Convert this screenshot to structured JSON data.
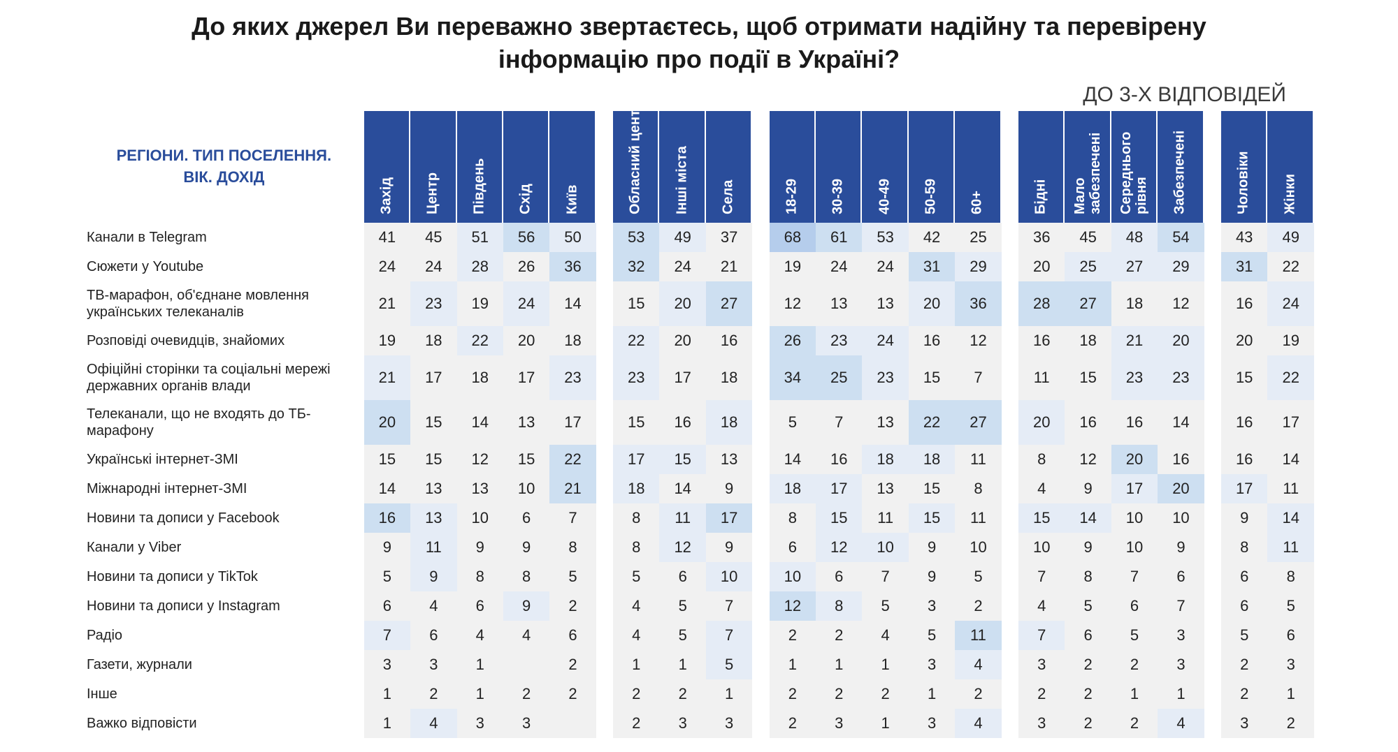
{
  "title_line1": "До яких джерел Ви переважно звертаєтесь, щоб отримати надійну та перевірену",
  "title_line2": "інформацію про події в Україні?",
  "subtitle": "ДО 3-Х ВІДПОВІДЕЙ",
  "corner_line1": "РЕГІОНИ. ТИП ПОСЕЛЕННЯ.",
  "corner_line2": "ВІК. ДОХІД",
  "shade_colors": {
    "c0": "#f1f1f1",
    "c1": "#e5ecf6",
    "c2": "#cddff1",
    "c3": "#b5cdec"
  },
  "header_bg": "#2a4d9b",
  "header_fg": "#ffffff",
  "column_groups": [
    {
      "name": "regions",
      "cols": [
        "Захід",
        "Центр",
        "Південь",
        "Схід",
        "Київ"
      ]
    },
    {
      "name": "settlement",
      "cols": [
        "Обласний центр",
        "Інші міста",
        "Села"
      ]
    },
    {
      "name": "age",
      "cols": [
        "18-29",
        "30-39",
        "40-49",
        "50-59",
        "60+"
      ]
    },
    {
      "name": "income",
      "cols": [
        "Бідні",
        "Мало забезпечені",
        "Середнього рівня",
        "Забезпечені"
      ]
    },
    {
      "name": "sex",
      "cols": [
        "Чоловіки",
        "Жінки"
      ]
    }
  ],
  "rows": [
    {
      "label": "Канали в Telegram",
      "tall": false,
      "vals": [
        41,
        45,
        51,
        56,
        50,
        53,
        49,
        37,
        68,
        61,
        53,
        42,
        25,
        36,
        45,
        48,
        54,
        43,
        49
      ],
      "shades": [
        "c0",
        "c0",
        "c1",
        "c2",
        "c1",
        "c2",
        "c1",
        "c0",
        "c3",
        "c2",
        "c1",
        "c0",
        "c0",
        "c0",
        "c0",
        "c1",
        "c2",
        "c0",
        "c1"
      ]
    },
    {
      "label": "Сюжети у Youtube",
      "tall": false,
      "vals": [
        24,
        24,
        28,
        26,
        36,
        32,
        24,
        21,
        19,
        24,
        24,
        31,
        29,
        20,
        25,
        27,
        29,
        31,
        22
      ],
      "shades": [
        "c0",
        "c0",
        "c1",
        "c0",
        "c2",
        "c2",
        "c0",
        "c0",
        "c0",
        "c0",
        "c0",
        "c2",
        "c1",
        "c0",
        "c1",
        "c1",
        "c1",
        "c2",
        "c0"
      ]
    },
    {
      "label": "ТВ-марафон, об'єднане мовлення українських телеканалів",
      "tall": true,
      "vals": [
        21,
        23,
        19,
        24,
        14,
        15,
        20,
        27,
        12,
        13,
        13,
        20,
        36,
        28,
        27,
        18,
        12,
        16,
        24
      ],
      "shades": [
        "c0",
        "c1",
        "c0",
        "c1",
        "c0",
        "c0",
        "c1",
        "c2",
        "c0",
        "c0",
        "c0",
        "c1",
        "c2",
        "c2",
        "c2",
        "c0",
        "c0",
        "c0",
        "c1"
      ]
    },
    {
      "label": "Розповіді очевидців, знайомих",
      "tall": false,
      "vals": [
        19,
        18,
        22,
        20,
        18,
        22,
        20,
        16,
        26,
        23,
        24,
        16,
        12,
        16,
        18,
        21,
        20,
        20,
        19
      ],
      "shades": [
        "c0",
        "c0",
        "c1",
        "c0",
        "c0",
        "c1",
        "c0",
        "c0",
        "c2",
        "c1",
        "c1",
        "c0",
        "c0",
        "c0",
        "c0",
        "c1",
        "c1",
        "c0",
        "c0"
      ]
    },
    {
      "label": "Офіційні сторінки та соціальні мережі державних органів влади",
      "tall": true,
      "vals": [
        21,
        17,
        18,
        17,
        23,
        23,
        17,
        18,
        34,
        25,
        23,
        15,
        7,
        11,
        15,
        23,
        23,
        15,
        22
      ],
      "shades": [
        "c1",
        "c0",
        "c0",
        "c0",
        "c1",
        "c1",
        "c0",
        "c0",
        "c2",
        "c2",
        "c1",
        "c0",
        "c0",
        "c0",
        "c0",
        "c1",
        "c1",
        "c0",
        "c1"
      ]
    },
    {
      "label": "Телеканали, що не входять до ТБ-марафону",
      "tall": true,
      "vals": [
        20,
        15,
        14,
        13,
        17,
        15,
        16,
        18,
        5,
        7,
        13,
        22,
        27,
        20,
        16,
        16,
        14,
        16,
        17
      ],
      "shades": [
        "c2",
        "c0",
        "c0",
        "c0",
        "c0",
        "c0",
        "c0",
        "c1",
        "c0",
        "c0",
        "c0",
        "c2",
        "c2",
        "c1",
        "c0",
        "c0",
        "c0",
        "c0",
        "c0"
      ]
    },
    {
      "label": "Українські інтернет-ЗМІ",
      "tall": false,
      "vals": [
        15,
        15,
        12,
        15,
        22,
        17,
        15,
        13,
        14,
        16,
        18,
        18,
        11,
        8,
        12,
        20,
        16,
        16,
        14
      ],
      "shades": [
        "c0",
        "c0",
        "c0",
        "c0",
        "c2",
        "c1",
        "c1",
        "c0",
        "c0",
        "c0",
        "c1",
        "c1",
        "c0",
        "c0",
        "c0",
        "c2",
        "c0",
        "c0",
        "c0"
      ]
    },
    {
      "label": "Міжнародні інтернет-ЗМІ",
      "tall": false,
      "vals": [
        14,
        13,
        13,
        10,
        21,
        18,
        14,
        9,
        18,
        17,
        13,
        15,
        8,
        4,
        9,
        17,
        20,
        17,
        11
      ],
      "shades": [
        "c0",
        "c0",
        "c0",
        "c0",
        "c2",
        "c1",
        "c0",
        "c0",
        "c1",
        "c1",
        "c0",
        "c0",
        "c0",
        "c0",
        "c0",
        "c1",
        "c2",
        "c1",
        "c0"
      ]
    },
    {
      "label": "Новини та дописи у Facebook",
      "tall": false,
      "vals": [
        16,
        13,
        10,
        6,
        7,
        8,
        11,
        17,
        8,
        15,
        11,
        15,
        11,
        15,
        14,
        10,
        10,
        9,
        14
      ],
      "shades": [
        "c2",
        "c1",
        "c0",
        "c0",
        "c0",
        "c0",
        "c1",
        "c2",
        "c0",
        "c1",
        "c0",
        "c1",
        "c0",
        "c1",
        "c1",
        "c0",
        "c0",
        "c0",
        "c1"
      ]
    },
    {
      "label": "Канали у Viber",
      "tall": false,
      "vals": [
        9,
        11,
        9,
        9,
        8,
        8,
        12,
        9,
        6,
        12,
        10,
        9,
        10,
        10,
        9,
        10,
        9,
        8,
        11
      ],
      "shades": [
        "c0",
        "c1",
        "c0",
        "c0",
        "c0",
        "c0",
        "c1",
        "c0",
        "c0",
        "c1",
        "c1",
        "c0",
        "c0",
        "c0",
        "c0",
        "c0",
        "c0",
        "c0",
        "c1"
      ]
    },
    {
      "label": "Новини та дописи у TikTok",
      "tall": false,
      "vals": [
        5,
        9,
        8,
        8,
        5,
        5,
        6,
        10,
        10,
        6,
        7,
        9,
        5,
        7,
        8,
        7,
        6,
        6,
        8
      ],
      "shades": [
        "c0",
        "c1",
        "c0",
        "c0",
        "c0",
        "c0",
        "c0",
        "c1",
        "c1",
        "c0",
        "c0",
        "c0",
        "c0",
        "c0",
        "c0",
        "c0",
        "c0",
        "c0",
        "c0"
      ]
    },
    {
      "label": "Новини та дописи у Instagram",
      "tall": false,
      "vals": [
        6,
        4,
        6,
        9,
        2,
        4,
        5,
        7,
        12,
        8,
        5,
        3,
        2,
        4,
        5,
        6,
        7,
        6,
        5
      ],
      "shades": [
        "c0",
        "c0",
        "c0",
        "c1",
        "c0",
        "c0",
        "c0",
        "c0",
        "c2",
        "c1",
        "c0",
        "c0",
        "c0",
        "c0",
        "c0",
        "c0",
        "c0",
        "c0",
        "c0"
      ]
    },
    {
      "label": "Радіо",
      "tall": false,
      "vals": [
        7,
        6,
        4,
        4,
        6,
        4,
        5,
        7,
        2,
        2,
        4,
        5,
        11,
        7,
        6,
        5,
        3,
        5,
        6
      ],
      "shades": [
        "c1",
        "c0",
        "c0",
        "c0",
        "c0",
        "c0",
        "c0",
        "c1",
        "c0",
        "c0",
        "c0",
        "c0",
        "c2",
        "c1",
        "c0",
        "c0",
        "c0",
        "c0",
        "c0"
      ]
    },
    {
      "label": "Газети, журнали",
      "tall": false,
      "vals": [
        3,
        3,
        1,
        "",
        2,
        1,
        1,
        5,
        1,
        1,
        1,
        3,
        4,
        3,
        2,
        2,
        3,
        2,
        3
      ],
      "shades": [
        "c0",
        "c0",
        "c0",
        "c0",
        "c0",
        "c0",
        "c0",
        "c1",
        "c0",
        "c0",
        "c0",
        "c0",
        "c1",
        "c0",
        "c0",
        "c0",
        "c0",
        "c0",
        "c0"
      ]
    },
    {
      "label": "Інше",
      "tall": false,
      "vals": [
        1,
        2,
        1,
        2,
        2,
        2,
        2,
        1,
        2,
        2,
        2,
        1,
        2,
        2,
        2,
        1,
        1,
        2,
        1
      ],
      "shades": [
        "c0",
        "c0",
        "c0",
        "c0",
        "c0",
        "c0",
        "c0",
        "c0",
        "c0",
        "c0",
        "c0",
        "c0",
        "c0",
        "c0",
        "c0",
        "c0",
        "c0",
        "c0",
        "c0"
      ]
    },
    {
      "label": "Важко відповісти",
      "tall": false,
      "vals": [
        1,
        4,
        3,
        3,
        "",
        2,
        3,
        3,
        2,
        3,
        1,
        3,
        4,
        3,
        2,
        2,
        4,
        3,
        2
      ],
      "shades": [
        "c0",
        "c1",
        "c0",
        "c0",
        "c0",
        "c0",
        "c0",
        "c0",
        "c0",
        "c0",
        "c0",
        "c0",
        "c1",
        "c0",
        "c0",
        "c0",
        "c1",
        "c0",
        "c0"
      ]
    }
  ]
}
